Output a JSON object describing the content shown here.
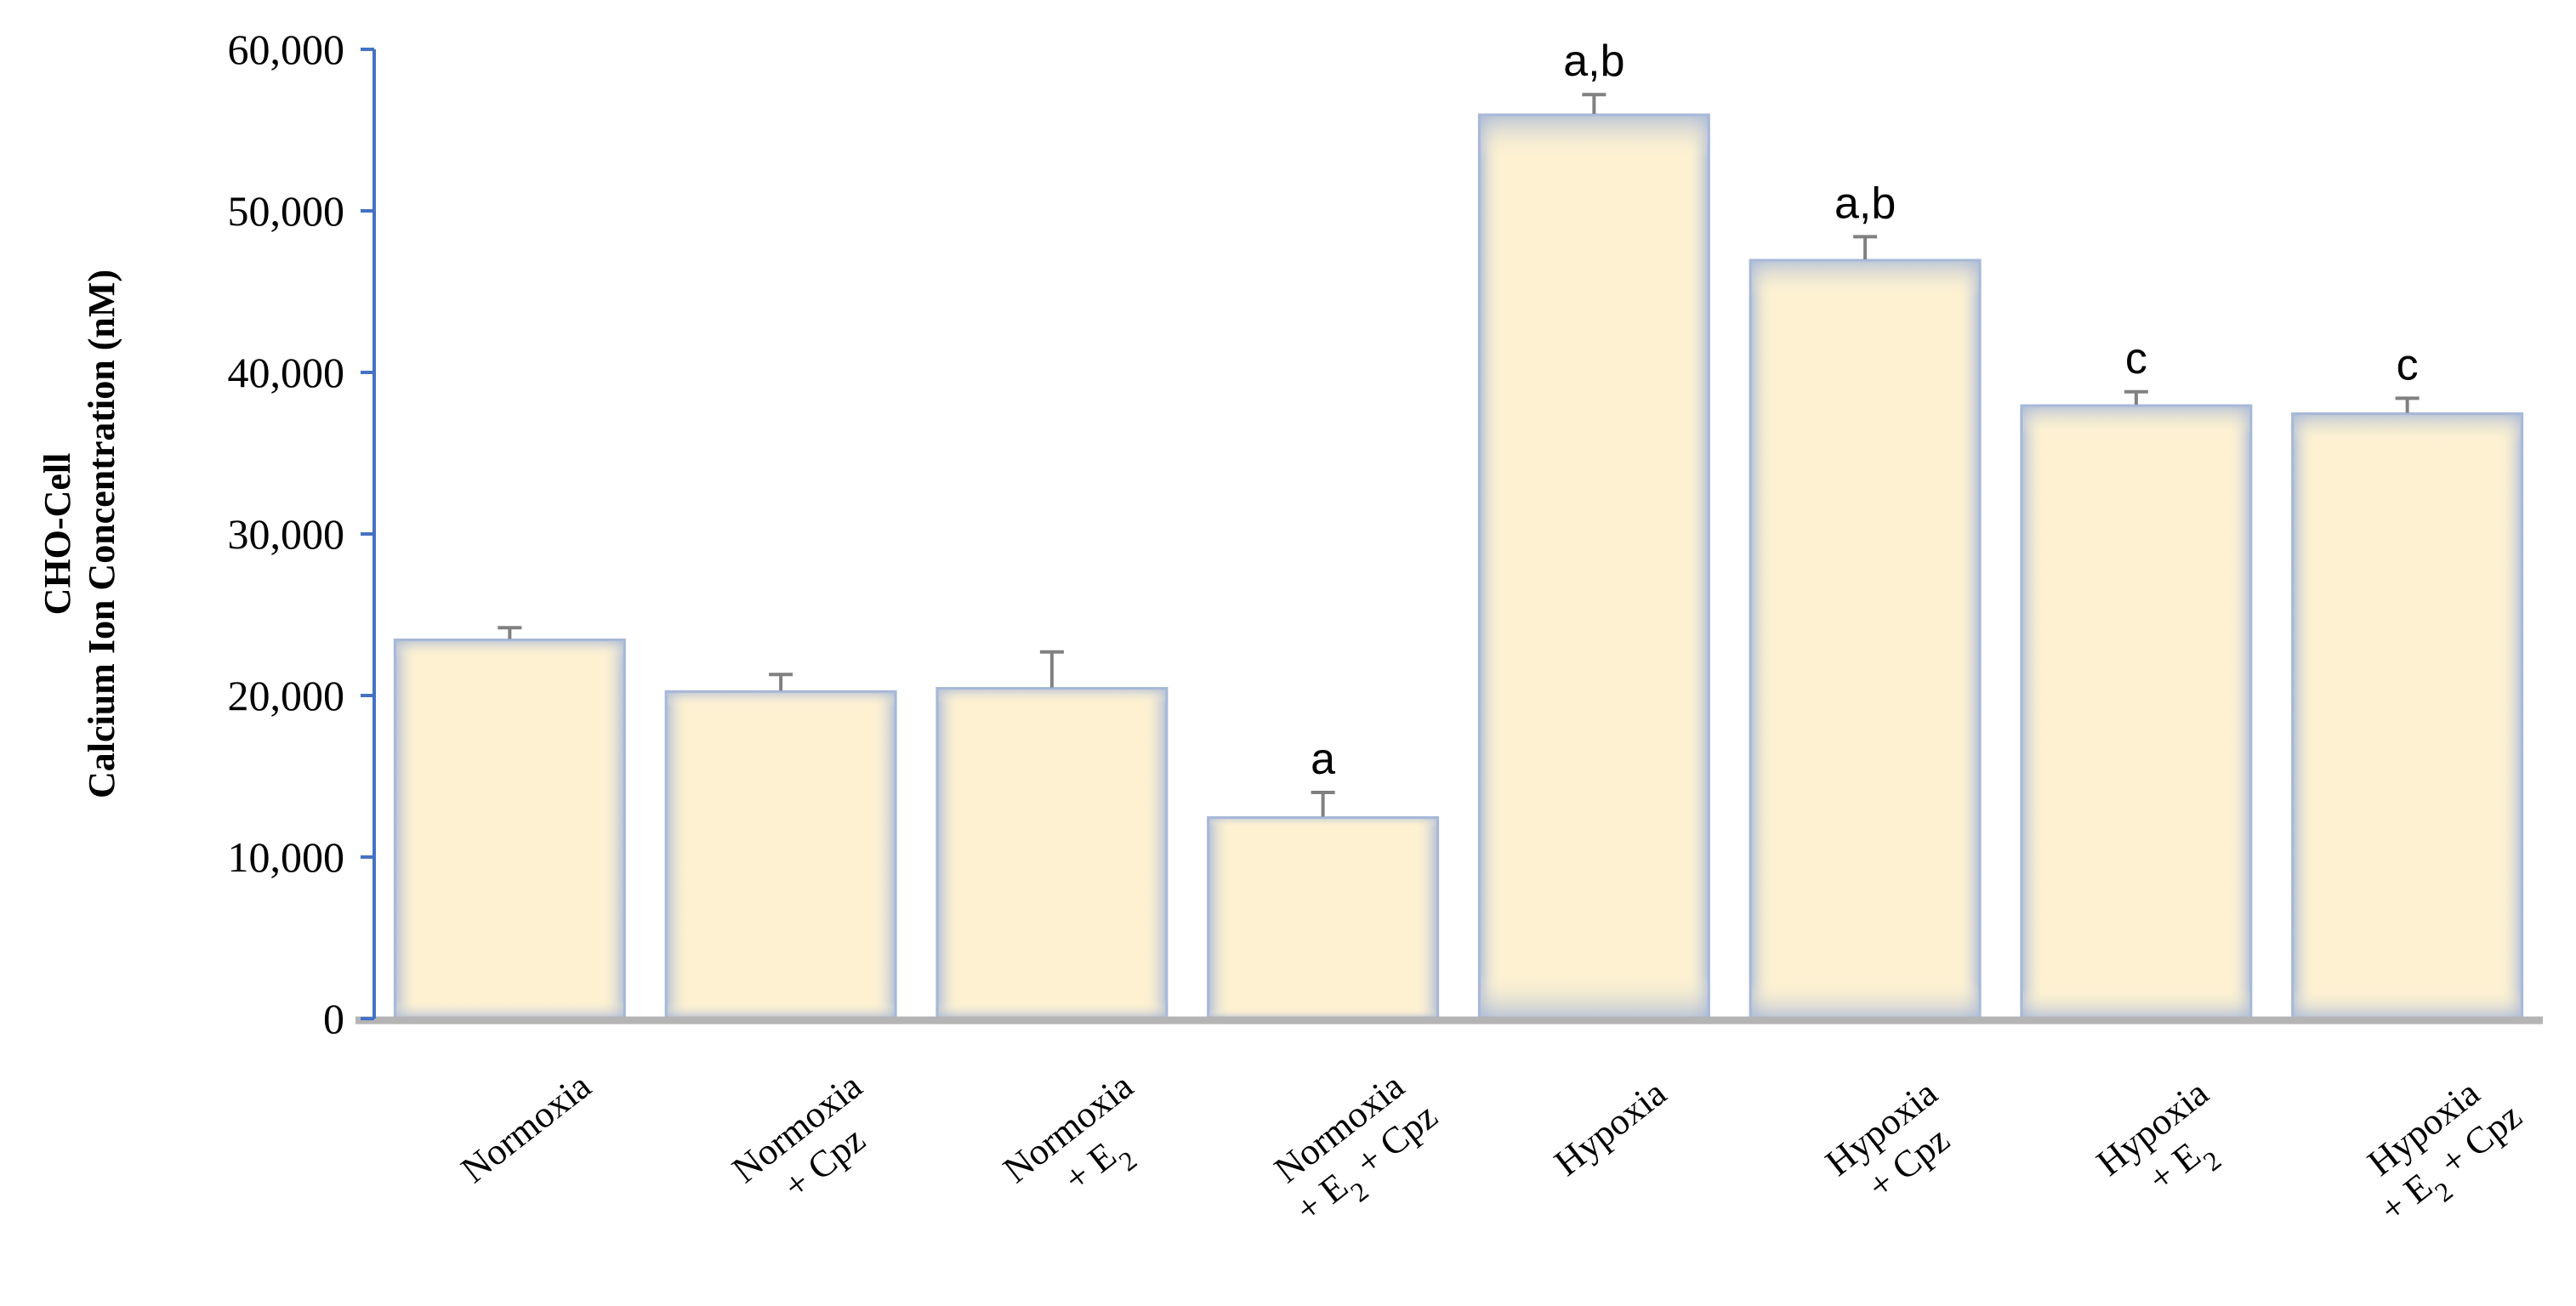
{
  "chart_data": {
    "type": "bar",
    "ylabel_lines": [
      "CHO-Cell",
      "Calcium Ion Concentration (nM)"
    ],
    "ylim": [
      0,
      60000
    ],
    "yticks": [
      0,
      10000,
      20000,
      30000,
      40000,
      50000,
      60000
    ],
    "ytick_labels": [
      "0",
      "10,000",
      "20,000",
      "30,000",
      "40,000",
      "50,000",
      "60,000"
    ],
    "grid": false,
    "categories": [
      {
        "lines": [
          "Normoxia"
        ]
      },
      {
        "lines": [
          "Normoxia",
          "+ Cpz"
        ]
      },
      {
        "lines": [
          "Normoxia",
          "+ E|2"
        ]
      },
      {
        "lines": [
          "Normoxia",
          "+ E|2| + Cpz"
        ]
      },
      {
        "lines": [
          "Hypoxia"
        ]
      },
      {
        "lines": [
          "Hypoxia",
          "+ Cpz"
        ]
      },
      {
        "lines": [
          "Hypoxia",
          "+ E|2"
        ]
      },
      {
        "lines": [
          "Hypoxia",
          "+ E|2| + Cpz"
        ]
      }
    ],
    "values": [
      23500,
      20300,
      20500,
      12500,
      56000,
      47000,
      38000,
      37500
    ],
    "errors": [
      700,
      1000,
      2200,
      1500,
      1200,
      1400,
      800,
      900
    ],
    "annotations": [
      "",
      "",
      "",
      "a",
      "a,b",
      "a,b",
      "c",
      "c"
    ],
    "colors": {
      "bar_fill": "#fdf1d2",
      "bar_edge": "#a7b8d8",
      "y_axis": "#4472c4",
      "x_axis": "#b4b4b4",
      "error_bar": "#808080"
    }
  }
}
